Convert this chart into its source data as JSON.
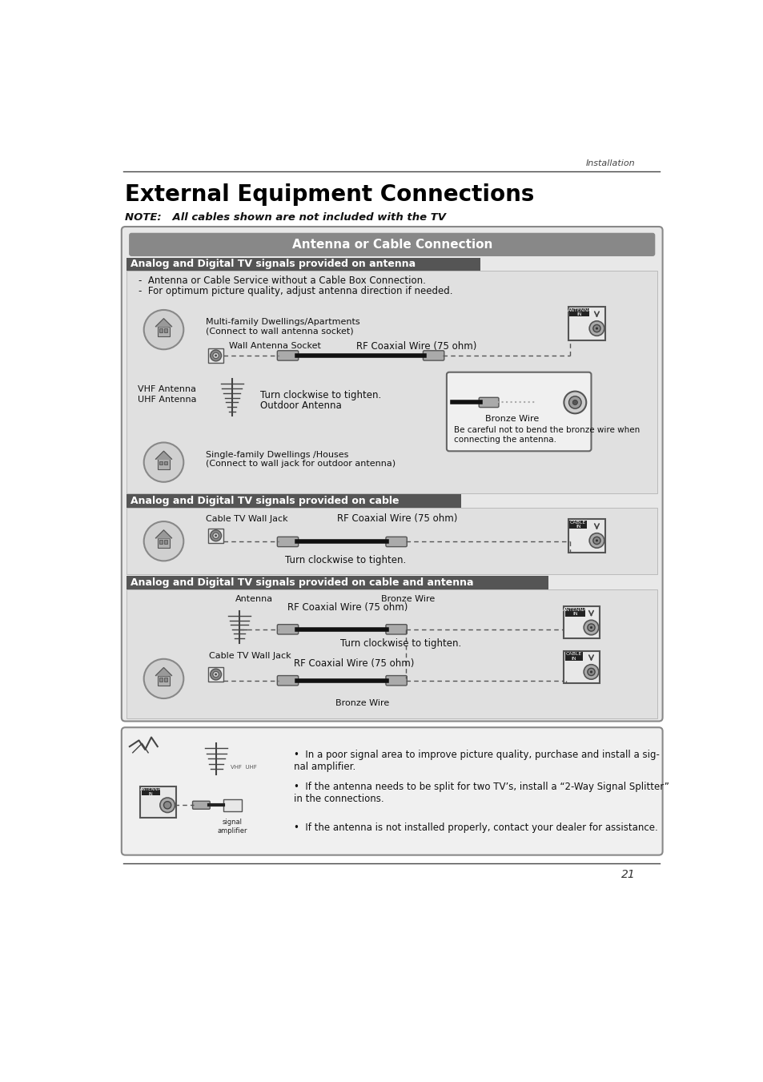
{
  "page_background": "#ffffff",
  "header_text": "Installation",
  "title": "External Equipment Connections",
  "note_text": "NOTE:   All cables shown are not included with the TV",
  "main_box_title": "Antenna or Cable Connection",
  "main_box_bg": "#888888",
  "main_box_text_color": "#ffffff",
  "section1_title": "Analog and Digital TV signals provided on antenna",
  "section1_bg": "#555555",
  "section1_text_color": "#ffffff",
  "section2_title": "Analog and Digital TV signals provided on cable",
  "section2_bg": "#555555",
  "section2_text_color": "#ffffff",
  "section3_title": "Analog and Digital TV signals provided on cable and antenna",
  "section3_bg": "#555555",
  "section3_text_color": "#ffffff",
  "content_bg": "#e0e0e0",
  "page_number": "21",
  "bullet_points": [
    "In a poor signal area to improve picture quality, purchase and install a sig-\nnal amplifier.",
    "If the antenna needs to be split for two TV's, install a “2-Way Signal Splitter”\nin the connections.",
    "If the antenna is not installed properly, contact your dealer for assistance."
  ]
}
